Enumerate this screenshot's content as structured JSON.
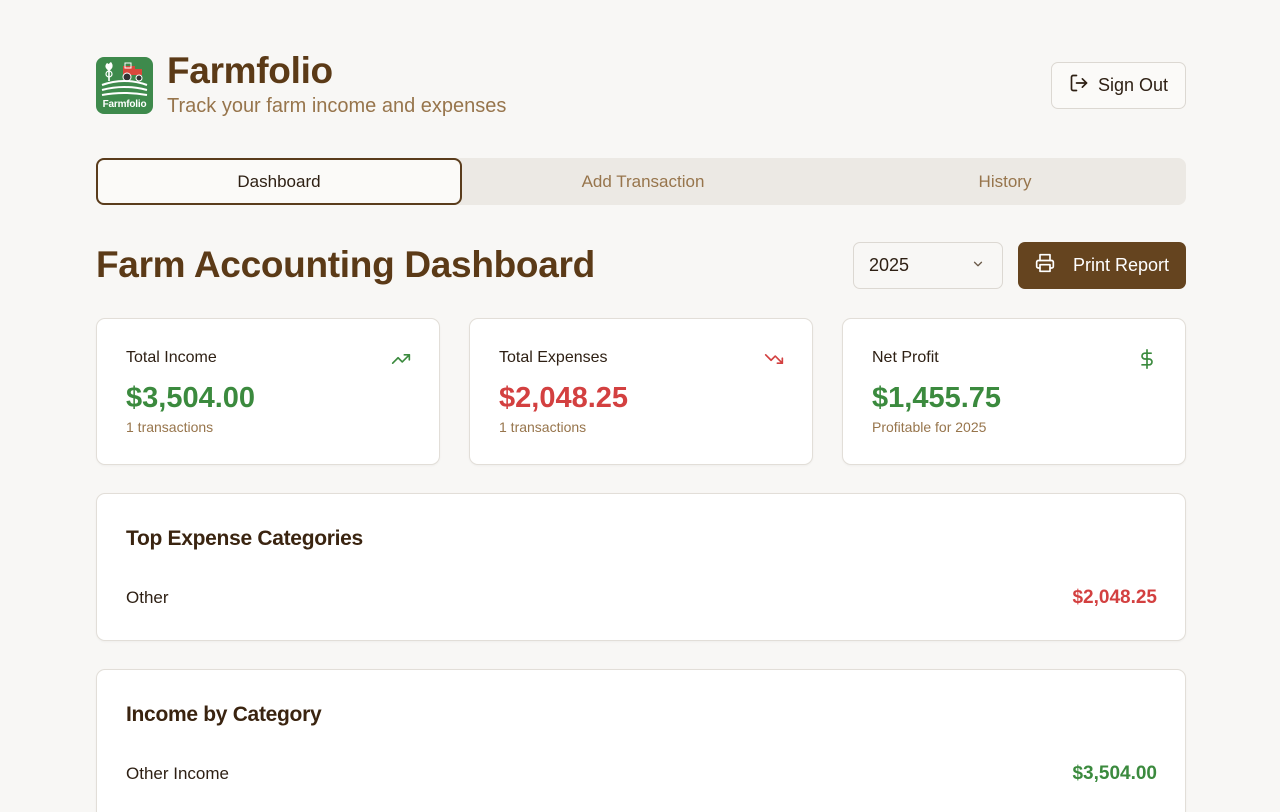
{
  "header": {
    "logo_text": "Farmfolio",
    "title": "Farmfolio",
    "subtitle": "Track your farm income and expenses",
    "signout_label": "Sign Out",
    "signout_icon": "sign-out-icon"
  },
  "tabs": [
    {
      "label": "Dashboard",
      "active": true
    },
    {
      "label": "Add Transaction",
      "active": false
    },
    {
      "label": "History",
      "active": false
    }
  ],
  "dashboard": {
    "title": "Farm Accounting Dashboard",
    "year_selected": "2025",
    "print_label": "Print Report",
    "print_icon": "printer-icon"
  },
  "stats": {
    "income": {
      "label": "Total Income",
      "value": "$3,504.00",
      "note": "1 transactions",
      "icon": "trending-up-icon"
    },
    "expenses": {
      "label": "Total Expenses",
      "value": "$2,048.25",
      "note": "1 transactions",
      "icon": "trending-down-icon"
    },
    "profit": {
      "label": "Net Profit",
      "value": "$1,455.75",
      "note": "Profitable for 2025",
      "icon": "dollar-sign-icon"
    }
  },
  "top_expenses": {
    "title": "Top Expense Categories",
    "rows": [
      {
        "label": "Other",
        "value": "$2,048.25"
      }
    ]
  },
  "income_by_category": {
    "title": "Income by Category",
    "rows": [
      {
        "label": "Other Income",
        "value": "$3,504.00"
      }
    ]
  },
  "colors": {
    "brand_brown": "#5b3a17",
    "income_green": "#3b8a3e",
    "expense_red": "#d34040",
    "logo_green": "#3e8a4c",
    "print_button": "#65441f"
  }
}
